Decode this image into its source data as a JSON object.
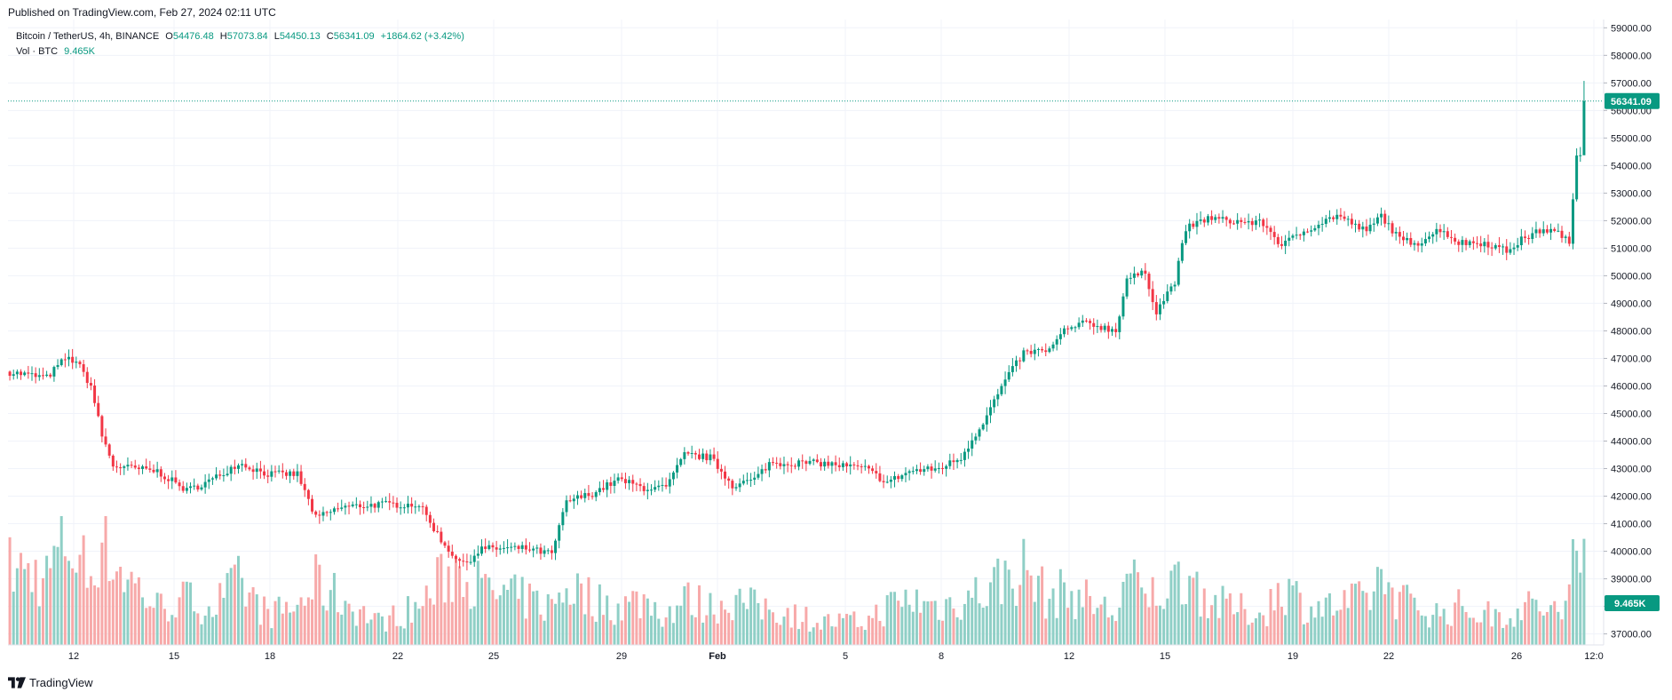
{
  "header": {
    "published": "Published on TradingView.com, Feb 27, 2024 02:11 UTC"
  },
  "footer": {
    "brand": "TradingView"
  },
  "legend": {
    "symbol": "Bitcoin / TetherUS, 4h, BINANCE",
    "open_label": "O",
    "open": "54476.48",
    "high_label": "H",
    "high": "57073.84",
    "low_label": "L",
    "low": "54450.13",
    "close_label": "C",
    "close": "56341.09",
    "change": "+1864.62 (+3.42%)",
    "vol_label": "Vol · BTC",
    "vol_value": "9.465K"
  },
  "colors": {
    "up": "#089981",
    "down": "#F23645",
    "vol_up": "#8FCFC6",
    "vol_down": "#F7A9A9",
    "grid": "#F0F3FA",
    "text": "#131722"
  },
  "chart_data": {
    "type": "candlestick",
    "title": "Bitcoin / TetherUS, 4h, BINANCE",
    "interval": "4h",
    "ylim": [
      36600,
      59300
    ],
    "y_ticks": [
      "59000.00",
      "58000.00",
      "57000.00",
      "56000.00",
      "55000.00",
      "54000.00",
      "53000.00",
      "52000.00",
      "51000.00",
      "50000.00",
      "49000.00",
      "48000.00",
      "47000.00",
      "46000.00",
      "45000.00",
      "44000.00",
      "43000.00",
      "42000.00",
      "41000.00",
      "40000.00",
      "39000.00",
      "38000.00",
      "37000.00"
    ],
    "x_ticks": [
      "12",
      "15",
      "18",
      "22",
      "25",
      "29",
      "Feb",
      "5",
      "8",
      "12",
      "15",
      "19",
      "22",
      "26",
      "12:0"
    ],
    "last_price_label": "56341.09",
    "volume_label": "9.465K",
    "keypoints": [
      [
        0,
        46500,
        1.0
      ],
      [
        10,
        46300,
        0.9
      ],
      [
        15,
        47000,
        1.4
      ],
      [
        18,
        46900,
        1.2
      ],
      [
        22,
        46000,
        0.9
      ],
      [
        25,
        44200,
        1.6
      ],
      [
        28,
        43100,
        1.1
      ],
      [
        40,
        42900,
        0.5
      ],
      [
        48,
        42200,
        0.6
      ],
      [
        55,
        42600,
        0.5
      ],
      [
        62,
        43200,
        0.8
      ],
      [
        70,
        42800,
        0.4
      ],
      [
        78,
        42800,
        0.5
      ],
      [
        83,
        41200,
        0.8
      ],
      [
        90,
        41600,
        0.6
      ],
      [
        100,
        41700,
        0.3
      ],
      [
        111,
        41700,
        0.5
      ],
      [
        118,
        40200,
        0.9
      ],
      [
        123,
        39500,
        1.1
      ],
      [
        128,
        40100,
        0.7
      ],
      [
        140,
        40100,
        0.6
      ],
      [
        147,
        39900,
        0.5
      ],
      [
        151,
        41800,
        0.8
      ],
      [
        158,
        42100,
        0.6
      ],
      [
        165,
        42600,
        0.5
      ],
      [
        172,
        42300,
        0.6
      ],
      [
        178,
        42300,
        0.4
      ],
      [
        183,
        43500,
        0.6
      ],
      [
        190,
        43400,
        0.5
      ],
      [
        196,
        42400,
        0.6
      ],
      [
        202,
        42600,
        0.5
      ],
      [
        206,
        43200,
        0.5
      ],
      [
        220,
        43200,
        0.3
      ],
      [
        232,
        43000,
        0.3
      ],
      [
        238,
        42500,
        0.5
      ],
      [
        244,
        42900,
        0.6
      ],
      [
        252,
        43000,
        0.5
      ],
      [
        258,
        43400,
        0.6
      ],
      [
        264,
        44700,
        0.7
      ],
      [
        270,
        46200,
        0.9
      ],
      [
        275,
        47200,
        1.0
      ],
      [
        282,
        47300,
        0.6
      ],
      [
        286,
        48000,
        0.7
      ],
      [
        292,
        48300,
        0.6
      ],
      [
        300,
        48000,
        0.4
      ],
      [
        303,
        49900,
        0.9
      ],
      [
        308,
        50100,
        0.6
      ],
      [
        311,
        48700,
        0.7
      ],
      [
        316,
        49800,
        0.8
      ],
      [
        319,
        51700,
        1.0
      ],
      [
        325,
        52100,
        0.6
      ],
      [
        330,
        52000,
        0.5
      ],
      [
        340,
        51900,
        0.4
      ],
      [
        345,
        51100,
        0.8
      ],
      [
        352,
        51700,
        0.5
      ],
      [
        360,
        52200,
        0.5
      ],
      [
        368,
        51600,
        0.6
      ],
      [
        372,
        52200,
        0.9
      ],
      [
        377,
        51300,
        0.6
      ],
      [
        382,
        51200,
        0.5
      ],
      [
        388,
        51700,
        0.4
      ],
      [
        393,
        51200,
        0.5
      ],
      [
        400,
        51200,
        0.4
      ],
      [
        406,
        50900,
        0.4
      ],
      [
        410,
        51300,
        0.5
      ],
      [
        416,
        51700,
        0.5
      ],
      [
        421,
        51500,
        0.4
      ],
      [
        423,
        51100,
        0.6
      ],
      [
        424,
        52800,
        1.1
      ],
      [
        425,
        54400,
        1.2
      ],
      [
        426,
        54500,
        0.9
      ],
      [
        427,
        56341,
        1.4
      ]
    ]
  }
}
